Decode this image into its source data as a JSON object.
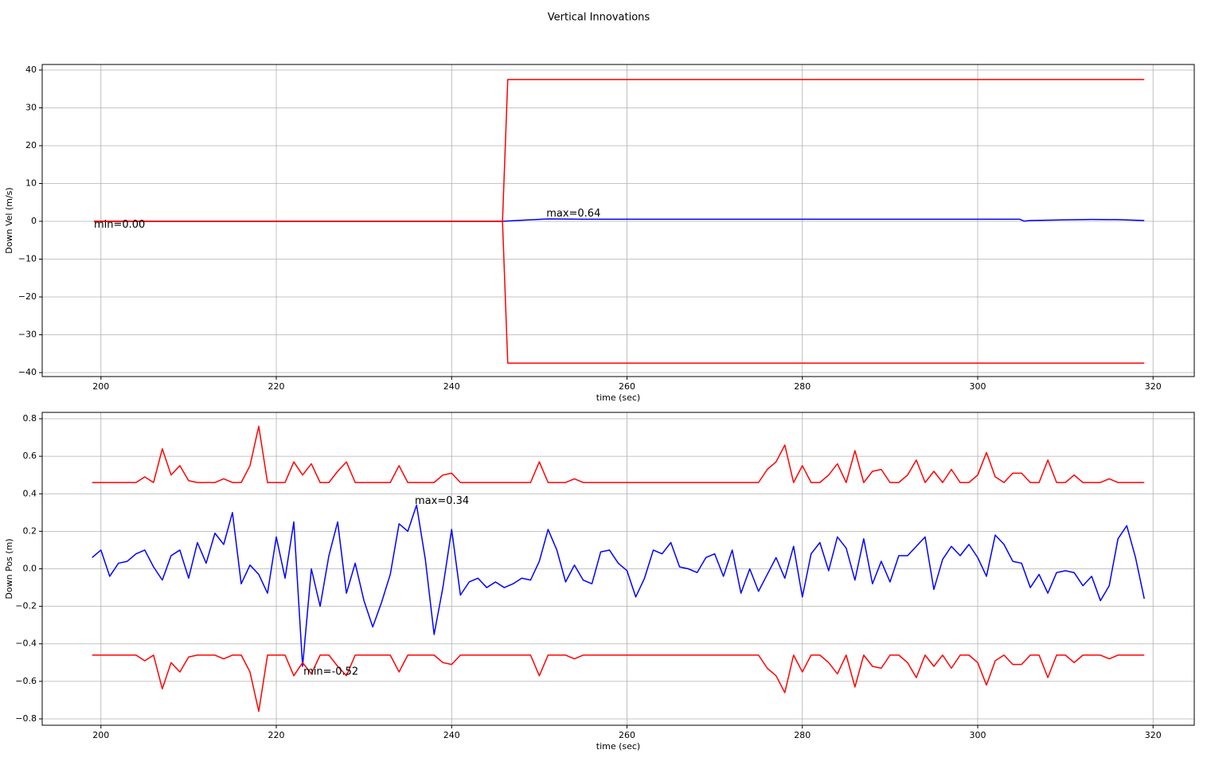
{
  "title": "Vertical Innovations",
  "chart_data": [
    {
      "type": "line",
      "xlabel": "time (sec)",
      "ylabel": "Down Vel (m/s)",
      "grid": true,
      "xlim": [
        193.3,
        324.7
      ],
      "xticks": [
        200,
        220,
        240,
        260,
        280,
        300,
        320
      ],
      "ylim": [
        -41.05,
        41.47
      ],
      "yticks": [
        {
          "value": -40,
          "label": "−40"
        },
        {
          "value": -30,
          "label": "−30"
        },
        {
          "value": -20,
          "label": "−20"
        },
        {
          "value": -10,
          "label": "−10"
        },
        0,
        10,
        20,
        30,
        40
      ],
      "series": [
        {
          "color": "#0000ff",
          "x": [
            199.2,
            245.8,
            248,
            251,
            255,
            304.8,
            305.3,
            306,
            310,
            313,
            316,
            319
          ],
          "values": [
            0,
            0,
            0.3,
            0.64,
            0.55,
            0.55,
            0.05,
            0.2,
            0.4,
            0.5,
            0.45,
            0.2
          ]
        },
        {
          "color": "#ff0000",
          "x": [
            199.2,
            245.8,
            246.4,
            319
          ],
          "values": [
            0,
            0,
            37.5,
            37.5
          ]
        },
        {
          "color": "#ff0000",
          "x": [
            199.2,
            245.8,
            246.4,
            319
          ],
          "values": [
            0,
            0,
            -37.5,
            -37.5
          ]
        }
      ],
      "annotations": [
        {
          "text": "min=0.00",
          "x": 199.2,
          "y": -1
        },
        {
          "text": "max=0.64",
          "x": 250.8,
          "y": 2
        }
      ]
    },
    {
      "type": "line",
      "xlabel": "time (sec)",
      "ylabel": "Down Pos (m)",
      "grid": true,
      "xlim": [
        193.3,
        324.7
      ],
      "xticks": [
        200,
        220,
        240,
        260,
        280,
        300,
        320
      ],
      "ylim": [
        -0.834,
        0.834
      ],
      "yticks": [
        {
          "value": -0.8,
          "label": "−0.8"
        },
        {
          "value": -0.6,
          "label": "−0.6"
        },
        {
          "value": -0.4,
          "label": "−0.4"
        },
        {
          "value": -0.2,
          "label": "−0.2"
        },
        {
          "value": 0,
          "label": "0.0"
        },
        0.2,
        0.4,
        0.6,
        0.8
      ],
      "x": [
        199,
        200,
        201,
        202,
        203,
        204,
        205,
        206,
        207,
        208,
        209,
        210,
        211,
        212,
        213,
        214,
        215,
        216,
        217,
        218,
        219,
        220,
        221,
        222,
        223,
        224,
        225,
        226,
        227,
        228,
        229,
        230,
        231,
        232,
        233,
        234,
        235,
        236,
        237,
        238,
        239,
        240,
        241,
        242,
        243,
        244,
        245,
        246,
        247,
        248,
        249,
        250,
        251,
        252,
        253,
        254,
        255,
        256,
        257,
        258,
        259,
        260,
        261,
        262,
        263,
        264,
        265,
        266,
        267,
        268,
        269,
        270,
        271,
        272,
        273,
        274,
        275,
        276,
        277,
        278,
        279,
        280,
        281,
        282,
        283,
        284,
        285,
        286,
        287,
        288,
        289,
        290,
        291,
        292,
        293,
        294,
        295,
        296,
        297,
        298,
        299,
        300,
        301,
        302,
        303,
        304,
        305,
        306,
        307,
        308,
        309,
        310,
        311,
        312,
        313,
        314,
        315,
        316,
        317,
        318,
        319
      ],
      "series": [
        {
          "color": "#0000ff",
          "values": [
            0.06,
            0.1,
            -0.04,
            0.03,
            0.04,
            0.08,
            0.1,
            0.01,
            -0.06,
            0.07,
            0.1,
            -0.05,
            0.14,
            0.03,
            0.19,
            0.13,
            0.3,
            -0.08,
            0.02,
            -0.03,
            -0.13,
            0.17,
            -0.05,
            0.25,
            -0.52,
            0.0,
            -0.2,
            0.07,
            0.25,
            -0.13,
            0.03,
            -0.17,
            -0.31,
            -0.18,
            -0.03,
            0.24,
            0.2,
            0.34,
            0.05,
            -0.35,
            -0.1,
            0.21,
            -0.14,
            -0.07,
            -0.05,
            -0.1,
            -0.07,
            -0.1,
            -0.08,
            -0.05,
            -0.06,
            0.04,
            0.21,
            0.1,
            -0.07,
            0.02,
            -0.06,
            -0.08,
            0.09,
            0.1,
            0.03,
            -0.01,
            -0.15,
            -0.05,
            0.1,
            0.08,
            0.14,
            0.01,
            0.0,
            -0.02,
            0.06,
            0.08,
            -0.04,
            0.1,
            -0.13,
            0.0,
            -0.12,
            -0.03,
            0.06,
            -0.05,
            0.12,
            -0.15,
            0.08,
            0.14,
            -0.01,
            0.17,
            0.11,
            -0.06,
            0.16,
            -0.08,
            0.04,
            -0.07,
            0.07,
            0.07,
            0.12,
            0.17,
            -0.11,
            0.05,
            0.12,
            0.07,
            0.13,
            0.06,
            -0.04,
            0.18,
            0.13,
            0.04,
            0.03,
            -0.1,
            -0.03,
            -0.13,
            -0.02,
            -0.01,
            -0.02,
            -0.09,
            -0.04,
            -0.17,
            -0.09,
            0.16,
            0.23,
            0.06,
            -0.16
          ]
        },
        {
          "color": "#ff0000",
          "values": [
            0.46,
            0.46,
            0.46,
            0.46,
            0.46,
            0.46,
            0.49,
            0.46,
            0.64,
            0.5,
            0.55,
            0.47,
            0.46,
            0.46,
            0.46,
            0.48,
            0.46,
            0.46,
            0.55,
            0.76,
            0.46,
            0.46,
            0.46,
            0.57,
            0.5,
            0.56,
            0.46,
            0.46,
            0.52,
            0.57,
            0.46,
            0.46,
            0.46,
            0.46,
            0.46,
            0.55,
            0.46,
            0.46,
            0.46,
            0.46,
            0.5,
            0.51,
            0.46,
            0.46,
            0.46,
            0.46,
            0.46,
            0.46,
            0.46,
            0.46,
            0.46,
            0.57,
            0.46,
            0.46,
            0.46,
            0.48,
            0.46,
            0.46,
            0.46,
            0.46,
            0.46,
            0.46,
            0.46,
            0.46,
            0.46,
            0.46,
            0.46,
            0.46,
            0.46,
            0.46,
            0.46,
            0.46,
            0.46,
            0.46,
            0.46,
            0.46,
            0.46,
            0.53,
            0.57,
            0.66,
            0.46,
            0.55,
            0.46,
            0.46,
            0.5,
            0.56,
            0.46,
            0.63,
            0.46,
            0.52,
            0.53,
            0.46,
            0.46,
            0.5,
            0.58,
            0.46,
            0.52,
            0.46,
            0.53,
            0.46,
            0.46,
            0.5,
            0.62,
            0.49,
            0.46,
            0.51,
            0.51,
            0.46,
            0.46,
            0.58,
            0.46,
            0.46,
            0.5,
            0.46,
            0.46,
            0.46,
            0.48,
            0.46,
            0.46,
            0.46,
            0.46
          ]
        },
        {
          "color": "#ff0000",
          "values": [
            -0.46,
            -0.46,
            -0.46,
            -0.46,
            -0.46,
            -0.46,
            -0.49,
            -0.46,
            -0.64,
            -0.5,
            -0.55,
            -0.47,
            -0.46,
            -0.46,
            -0.46,
            -0.48,
            -0.46,
            -0.46,
            -0.55,
            -0.76,
            -0.46,
            -0.46,
            -0.46,
            -0.57,
            -0.5,
            -0.56,
            -0.46,
            -0.46,
            -0.52,
            -0.57,
            -0.46,
            -0.46,
            -0.46,
            -0.46,
            -0.46,
            -0.55,
            -0.46,
            -0.46,
            -0.46,
            -0.46,
            -0.5,
            -0.51,
            -0.46,
            -0.46,
            -0.46,
            -0.46,
            -0.46,
            -0.46,
            -0.46,
            -0.46,
            -0.46,
            -0.57,
            -0.46,
            -0.46,
            -0.46,
            -0.48,
            -0.46,
            -0.46,
            -0.46,
            -0.46,
            -0.46,
            -0.46,
            -0.46,
            -0.46,
            -0.46,
            -0.46,
            -0.46,
            -0.46,
            -0.46,
            -0.46,
            -0.46,
            -0.46,
            -0.46,
            -0.46,
            -0.46,
            -0.46,
            -0.46,
            -0.53,
            -0.57,
            -0.66,
            -0.46,
            -0.55,
            -0.46,
            -0.46,
            -0.5,
            -0.56,
            -0.46,
            -0.63,
            -0.46,
            -0.52,
            -0.53,
            -0.46,
            -0.46,
            -0.5,
            -0.58,
            -0.46,
            -0.52,
            -0.46,
            -0.53,
            -0.46,
            -0.46,
            -0.5,
            -0.62,
            -0.49,
            -0.46,
            -0.51,
            -0.51,
            -0.46,
            -0.46,
            -0.58,
            -0.46,
            -0.46,
            -0.5,
            -0.46,
            -0.46,
            -0.46,
            -0.48,
            -0.46,
            -0.46,
            -0.46,
            -0.46
          ]
        }
      ],
      "annotations": [
        {
          "text": "max=0.34",
          "x": 235.8,
          "y": 0.36
        },
        {
          "text": "min=-0.52",
          "x": 223.1,
          "y": -0.55
        }
      ]
    }
  ]
}
